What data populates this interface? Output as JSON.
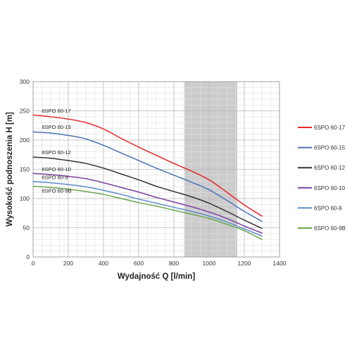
{
  "chart_data": {
    "type": "line",
    "xlabel": "Wydajność Q [l/min]",
    "ylabel": "Wysokość podnoszenia H [m]",
    "xlim": [
      0,
      1400
    ],
    "ylim": [
      0,
      300
    ],
    "x_ticks": [
      0,
      200,
      400,
      600,
      800,
      1000,
      1200,
      1400
    ],
    "y_ticks": [
      0,
      50,
      100,
      150,
      200,
      250,
      300
    ],
    "grid": true,
    "legend_position": "right",
    "highlight_band": {
      "x_from": 860,
      "x_to": 1160,
      "color": "#cccccc"
    },
    "series": [
      {
        "name": "6SPO 60-17",
        "color": "#e8262a",
        "x": [
          0,
          100,
          200,
          300,
          400,
          500,
          600,
          700,
          800,
          900,
          1000,
          1100,
          1200,
          1300
        ],
        "y": [
          243,
          240,
          236,
          230,
          219,
          203,
          188,
          174,
          160,
          147,
          132,
          111,
          89,
          70
        ]
      },
      {
        "name": "6SPO 60-15",
        "color": "#4a72b8",
        "x": [
          0,
          100,
          200,
          300,
          400,
          500,
          600,
          700,
          800,
          900,
          1000,
          1100,
          1200,
          1300
        ],
        "y": [
          214,
          212,
          208,
          202,
          191,
          178,
          165,
          152,
          140,
          128,
          115,
          97,
          78,
          61
        ]
      },
      {
        "name": "6SPO 60-12",
        "color": "#333333",
        "x": [
          0,
          100,
          200,
          300,
          400,
          500,
          600,
          700,
          800,
          900,
          1000,
          1100,
          1200,
          1300
        ],
        "y": [
          171,
          169,
          165,
          160,
          152,
          142,
          132,
          121,
          112,
          103,
          92,
          78,
          63,
          49
        ]
      },
      {
        "name": "6SPO 60-10",
        "color": "#7b3fa0",
        "x": [
          0,
          100,
          200,
          300,
          400,
          500,
          600,
          700,
          800,
          900,
          1000,
          1100,
          1200,
          1300
        ],
        "y": [
          143,
          141,
          138,
          134,
          127,
          119,
          111,
          102,
          94,
          86,
          77,
          66,
          53,
          41
        ]
      },
      {
        "name": "6SPO 60-9",
        "color": "#5b8bc9",
        "x": [
          0,
          100,
          200,
          300,
          400,
          500,
          600,
          700,
          800,
          900,
          1000,
          1100,
          1200,
          1300
        ],
        "y": [
          129,
          127,
          124,
          120,
          114,
          107,
          99,
          92,
          85,
          78,
          70,
          60,
          48,
          36
        ]
      },
      {
        "name": "6SPO 60-9B",
        "color": "#6aa84f",
        "x": [
          0,
          100,
          200,
          300,
          400,
          500,
          600,
          700,
          800,
          900,
          1000,
          1100,
          1200,
          1300
        ],
        "y": [
          121,
          119,
          116,
          112,
          107,
          100,
          93,
          87,
          80,
          73,
          66,
          56,
          45,
          30
        ]
      }
    ],
    "curve_labels": [
      {
        "text": "6SPO 60-17",
        "x": 50,
        "y": 247
      },
      {
        "text": "6SPO 60-15",
        "x": 50,
        "y": 219
      },
      {
        "text": "6SPO 60-12",
        "x": 50,
        "y": 176
      },
      {
        "text": "6SPO 60-10",
        "x": 50,
        "y": 147
      },
      {
        "text": "6SPO 60-9",
        "x": 50,
        "y": 133
      },
      {
        "text": "6SPO 60-9B",
        "x": 50,
        "y": 110
      }
    ]
  }
}
